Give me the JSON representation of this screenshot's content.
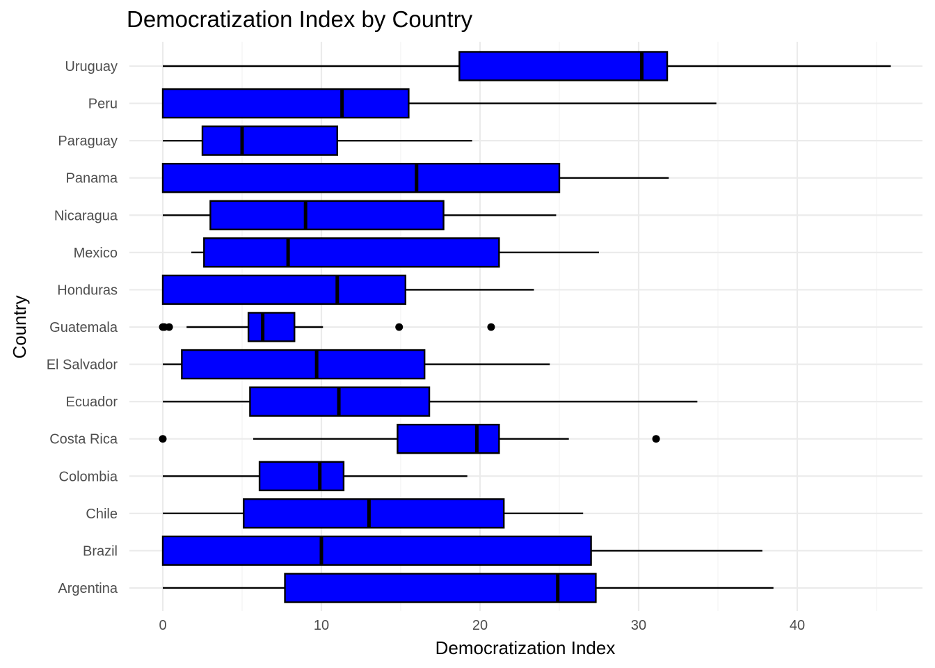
{
  "chart_data": {
    "type": "boxplot",
    "orientation": "horizontal",
    "title": "Democratization Index by Country",
    "xlabel": "Democratization Index",
    "ylabel": "Country",
    "xlim": [
      -2.1,
      48.4
    ],
    "x_ticks": [
      0,
      10,
      20,
      30,
      40
    ],
    "x_tick_labels": [
      "0",
      "10",
      "20",
      "30",
      "40"
    ],
    "grid": true,
    "legend": "none",
    "box_fill": "#0000ff",
    "box_stroke": "#000000",
    "categories": [
      "Argentina",
      "Brazil",
      "Chile",
      "Colombia",
      "Costa Rica",
      "Ecuador",
      "El Salvador",
      "Guatemala",
      "Honduras",
      "Mexico",
      "Nicaragua",
      "Panama",
      "Paraguay",
      "Peru",
      "Uruguay"
    ],
    "boxes": [
      {
        "category": "Argentina",
        "whisker_low": 0,
        "q1": 7.7,
        "median": 24.9,
        "q3": 27.3,
        "whisker_high": 38.5,
        "outliers": []
      },
      {
        "category": "Brazil",
        "whisker_low": 0,
        "q1": 0,
        "median": 10.0,
        "q3": 27.0,
        "whisker_high": 37.8,
        "outliers": []
      },
      {
        "category": "Chile",
        "whisker_low": 0,
        "q1": 5.1,
        "median": 13.0,
        "q3": 21.5,
        "whisker_high": 26.5,
        "outliers": []
      },
      {
        "category": "Colombia",
        "whisker_low": 0,
        "q1": 6.1,
        "median": 9.9,
        "q3": 11.4,
        "whisker_high": 19.2,
        "outliers": []
      },
      {
        "category": "Costa Rica",
        "whisker_low": 5.7,
        "q1": 14.8,
        "median": 19.8,
        "q3": 21.2,
        "whisker_high": 25.6,
        "outliers": [
          0.0,
          31.1
        ]
      },
      {
        "category": "Ecuador",
        "whisker_low": 0,
        "q1": 5.5,
        "median": 11.1,
        "q3": 16.8,
        "whisker_high": 33.7,
        "outliers": []
      },
      {
        "category": "El Salvador",
        "whisker_low": 0,
        "q1": 1.2,
        "median": 9.7,
        "q3": 16.5,
        "whisker_high": 24.4,
        "outliers": []
      },
      {
        "category": "Guatemala",
        "whisker_low": 1.5,
        "q1": 5.4,
        "median": 6.3,
        "q3": 8.3,
        "whisker_high": 10.1,
        "outliers": [
          0.0,
          0.1,
          0.4,
          14.9,
          20.7
        ]
      },
      {
        "category": "Honduras",
        "whisker_low": 0,
        "q1": 0,
        "median": 11.0,
        "q3": 15.3,
        "whisker_high": 23.4,
        "outliers": []
      },
      {
        "category": "Mexico",
        "whisker_low": 1.8,
        "q1": 2.6,
        "median": 7.9,
        "q3": 21.2,
        "whisker_high": 27.5,
        "outliers": []
      },
      {
        "category": "Nicaragua",
        "whisker_low": 0,
        "q1": 3.0,
        "median": 9.0,
        "q3": 17.7,
        "whisker_high": 24.8,
        "outliers": []
      },
      {
        "category": "Panama",
        "whisker_low": 0,
        "q1": 0,
        "median": 16.0,
        "q3": 25.0,
        "whisker_high": 31.9,
        "outliers": []
      },
      {
        "category": "Paraguay",
        "whisker_low": 0,
        "q1": 2.5,
        "median": 5.0,
        "q3": 11.0,
        "whisker_high": 19.5,
        "outliers": []
      },
      {
        "category": "Peru",
        "whisker_low": 0,
        "q1": 0,
        "median": 11.3,
        "q3": 15.5,
        "whisker_high": 34.9,
        "outliers": []
      },
      {
        "category": "Uruguay",
        "whisker_low": 0,
        "q1": 18.7,
        "median": 30.2,
        "q3": 31.8,
        "whisker_high": 45.9,
        "outliers": []
      }
    ]
  }
}
